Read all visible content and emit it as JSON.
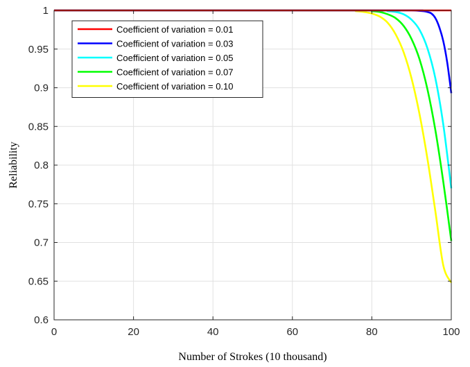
{
  "chart_data": {
    "type": "line",
    "title": "",
    "xlabel": "Number of Strokes (10 thousand)",
    "ylabel": "Reliability",
    "xlim": [
      0,
      100
    ],
    "ylim": [
      0.6,
      1
    ],
    "xticks": [
      0,
      20,
      40,
      60,
      80,
      100
    ],
    "yticks": [
      0.6,
      0.65,
      0.7,
      0.75,
      0.8,
      0.85,
      0.9,
      0.95,
      1
    ],
    "xtick_labels": [
      "0",
      "20",
      "40",
      "60",
      "80",
      "100"
    ],
    "ytick_labels": [
      "0.6",
      "0.65",
      "0.7",
      "0.75",
      "0.8",
      "0.85",
      "0.9",
      "0.95",
      "1"
    ],
    "grid": true,
    "legend_position": "top-left",
    "series": [
      {
        "name": "Coefficient of variation = 0.01",
        "color": "#ff0000",
        "x": [
          0,
          80,
          90,
          95,
          97,
          98,
          99,
          100
        ],
        "y": [
          1,
          1,
          1,
          1,
          1,
          1,
          1,
          1
        ]
      },
      {
        "name": "Coefficient of variation = 0.03",
        "color": "#0000ff",
        "x": [
          0,
          85,
          90,
          93,
          94,
          95,
          96,
          97,
          98,
          99,
          100
        ],
        "y": [
          1,
          1,
          1,
          0.999,
          0.998,
          0.996,
          0.99,
          0.978,
          0.96,
          0.932,
          0.893
        ]
      },
      {
        "name": "Coefficient of variation = 0.05",
        "color": "#00ffff",
        "x": [
          0,
          80,
          84,
          86,
          88,
          90,
          92,
          94,
          96,
          98,
          100
        ],
        "y": [
          1,
          1,
          0.999,
          0.998,
          0.995,
          0.988,
          0.975,
          0.951,
          0.912,
          0.852,
          0.77
        ]
      },
      {
        "name": "Coefficient of variation = 0.07",
        "color": "#00ff00",
        "x": [
          0,
          76,
          80,
          82,
          84,
          86,
          88,
          90,
          92,
          94,
          96,
          98,
          100
        ],
        "y": [
          1,
          1,
          0.999,
          0.998,
          0.995,
          0.99,
          0.98,
          0.963,
          0.937,
          0.898,
          0.845,
          0.778,
          0.702
        ]
      },
      {
        "name": "Coefficient of variation = 0.10",
        "color": "#ffff00",
        "x": [
          0,
          72,
          76,
          78,
          80,
          82,
          84,
          86,
          88,
          90,
          92,
          94,
          96,
          98,
          100
        ],
        "y": [
          1,
          1,
          0.999,
          0.998,
          0.996,
          0.992,
          0.984,
          0.969,
          0.946,
          0.912,
          0.866,
          0.808,
          0.74,
          0.67,
          0.648
        ]
      }
    ]
  }
}
